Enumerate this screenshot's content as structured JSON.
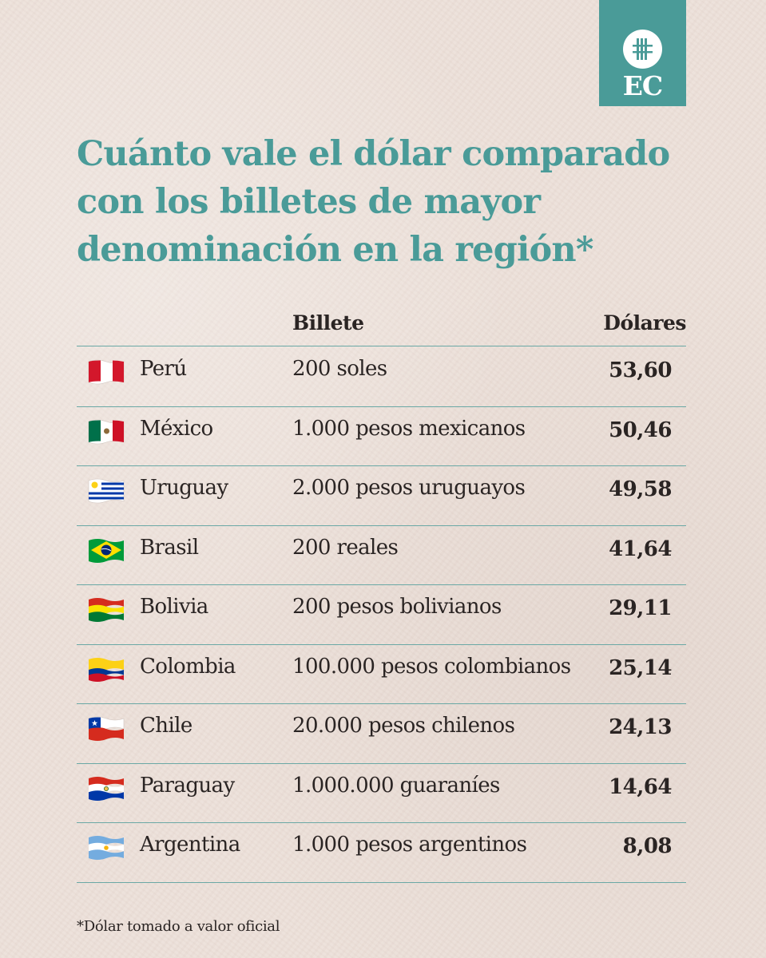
{
  "logo": {
    "text": "EC"
  },
  "title": {
    "line1": "Cuánto vale el dólar comparado",
    "line2": "con los billetes de mayor",
    "line3": "denominación en la región*"
  },
  "table": {
    "header_bill": "Billete",
    "header_usd": "Dólares",
    "rows": [
      {
        "country": "Perú",
        "bill": "200 soles",
        "usd": "53,60",
        "flag": "peru-flag"
      },
      {
        "country": "México",
        "bill": "1.000 pesos mexicanos",
        "usd": "50,46",
        "flag": "mexico-flag"
      },
      {
        "country": "Uruguay",
        "bill": "2.000 pesos uruguayos",
        "usd": "49,58",
        "flag": "uruguay-flag"
      },
      {
        "country": "Brasil",
        "bill": "200 reales",
        "usd": "41,64",
        "flag": "brazil-flag"
      },
      {
        "country": "Bolivia",
        "bill": "200 pesos bolivianos",
        "usd": "29,11",
        "flag": "bolivia-flag"
      },
      {
        "country": "Colombia",
        "bill": "100.000 pesos colombianos",
        "usd": "25,14",
        "flag": "colombia-flag"
      },
      {
        "country": "Chile",
        "bill": "20.000 pesos chilenos",
        "usd": "24,13",
        "flag": "chile-flag"
      },
      {
        "country": "Paraguay",
        "bill": "1.000.000 guaraníes",
        "usd": "14,64",
        "flag": "paraguay-flag"
      },
      {
        "country": "Argentina",
        "bill": "1.000 pesos argentinos",
        "usd": "8,08",
        "flag": "argentina-flag"
      }
    ]
  },
  "footnote": "*Dólar tomado a valor oficial",
  "colors": {
    "accent": "#4a9b98",
    "background": "#ede1da",
    "text": "#2a2423"
  }
}
